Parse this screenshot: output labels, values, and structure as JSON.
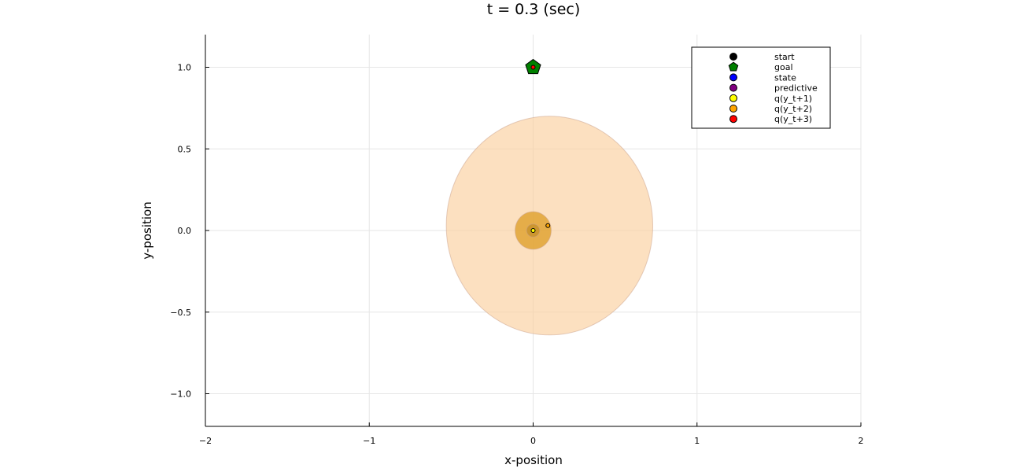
{
  "chart_data": {
    "type": "scatter",
    "title": "t = 0.3 (sec)",
    "xlabel": "x-position",
    "ylabel": "y-position",
    "xlim": [
      -2,
      2
    ],
    "ylim": [
      -1.2,
      1.2
    ],
    "x_ticks": [
      -2,
      -1,
      0,
      1,
      2
    ],
    "x_tick_labels": [
      "−2",
      "−1",
      "0",
      "1",
      "2"
    ],
    "y_ticks": [
      -1.0,
      -0.5,
      0.0,
      0.5,
      1.0
    ],
    "y_tick_labels": [
      "−1.0",
      "−0.5",
      "0.0",
      "0.5",
      "1.0"
    ],
    "grid": true,
    "legend_position": "top-right",
    "legend": [
      {
        "label": "start",
        "color": "#000000",
        "marker": "circle"
      },
      {
        "label": "goal",
        "color": "#008000",
        "marker": "pentagon"
      },
      {
        "label": "state",
        "color": "#0000ff",
        "marker": "circle"
      },
      {
        "label": "predictive",
        "color": "#800080",
        "marker": "circle"
      },
      {
        "label": "q(y_t+1)",
        "color": "#ffff00",
        "marker": "circle"
      },
      {
        "label": "q(y_t+2)",
        "color": "#ffa500",
        "marker": "circle"
      },
      {
        "label": "q(y_t+3)",
        "color": "#ff0000",
        "marker": "circle"
      }
    ],
    "uncertainty_ellipses": [
      {
        "series": "q(y_t+3)",
        "cx": 0.1,
        "cy": 0.03,
        "rx": 0.63,
        "ry": 0.67,
        "color": "#fbd09e",
        "opacity": 0.65
      },
      {
        "series": "q(y_t+2)",
        "cx": 0.0,
        "cy": 0.0,
        "rx": 0.11,
        "ry": 0.115,
        "color": "#e2a73c",
        "opacity": 0.9
      },
      {
        "series": "q(y_t+1)",
        "cx": 0.0,
        "cy": 0.0,
        "rx": 0.04,
        "ry": 0.04,
        "color": "#c9942e",
        "opacity": 0.9
      }
    ],
    "points": [
      {
        "series": "goal",
        "x": 0.0,
        "y": 1.0,
        "color": "#008000",
        "marker": "pentagon"
      },
      {
        "series": "q(y_t+3)",
        "x": 0.0,
        "y": 1.0,
        "color": "#ff0000",
        "marker": "circle"
      },
      {
        "series": "q(y_t+2)",
        "x": 0.09,
        "y": 0.03,
        "color": "#ffa500",
        "marker": "circle"
      },
      {
        "series": "q(y_t+1)",
        "x": 0.0,
        "y": 0.0,
        "color": "#ffff00",
        "marker": "circle"
      }
    ]
  }
}
